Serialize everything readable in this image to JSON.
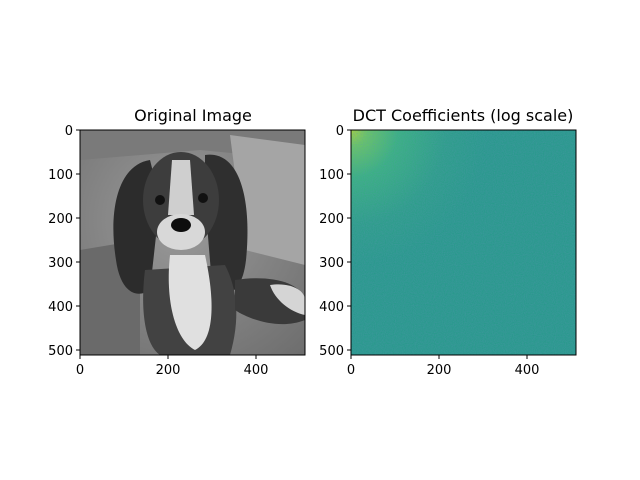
{
  "chart_data": [
    {
      "type": "heatmap",
      "title": "Original Image",
      "colormap": "gray",
      "xlim": [
        0,
        512
      ],
      "ylim": [
        512,
        0
      ],
      "xticks": [
        0,
        200,
        400
      ],
      "yticks": [
        0,
        100,
        200,
        300,
        400,
        500
      ],
      "xlabel": "",
      "ylabel": ""
    },
    {
      "type": "heatmap",
      "title": "DCT Coefficients (log scale)",
      "colormap": "viridis",
      "scale": "log",
      "xlim": [
        0,
        512
      ],
      "ylim": [
        512,
        0
      ],
      "xticks": [
        0,
        200,
        400
      ],
      "yticks": [
        0,
        100,
        200,
        300,
        400,
        500
      ],
      "xlabel": "",
      "ylabel": ""
    }
  ]
}
